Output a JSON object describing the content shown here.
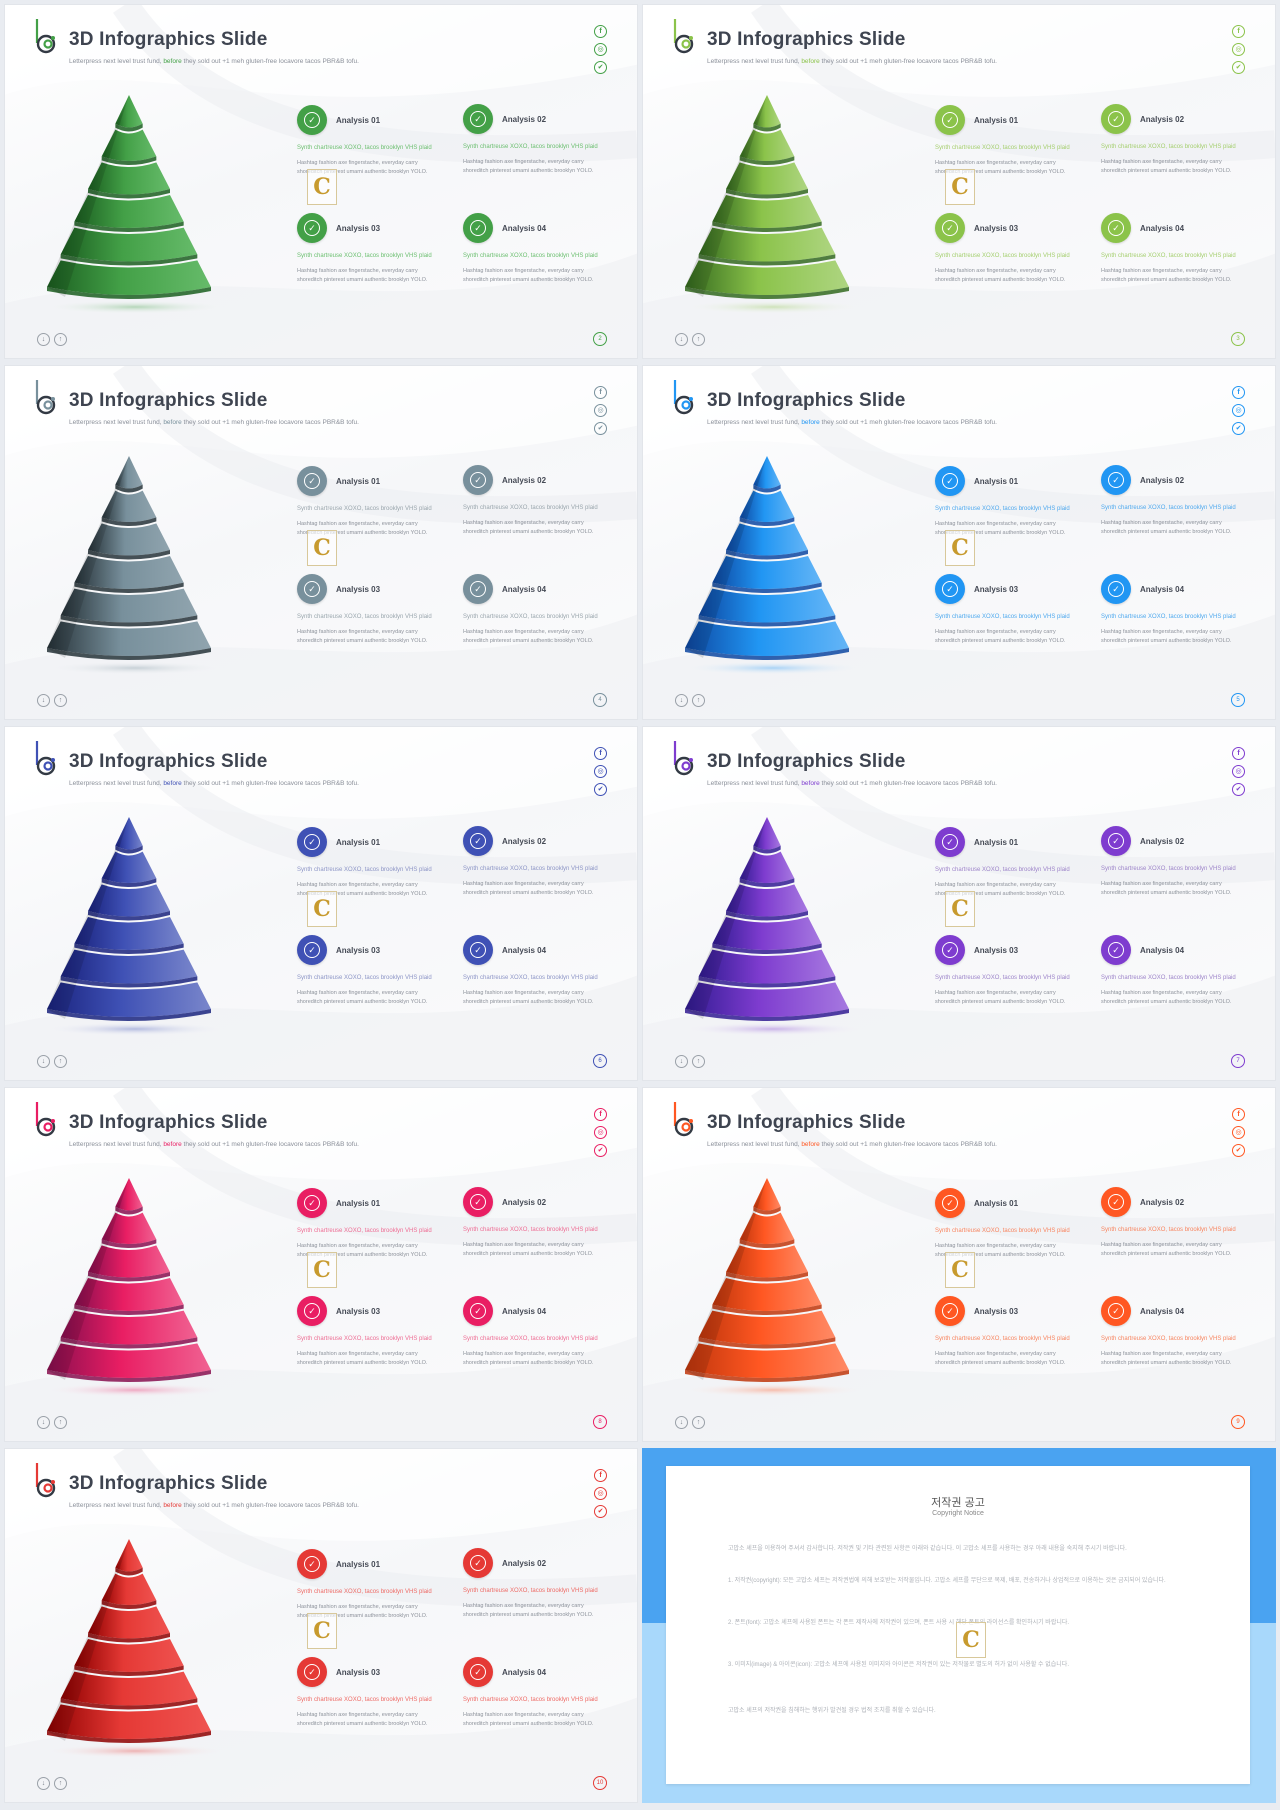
{
  "slide_common": {
    "title": "3D Infographics Slide",
    "subtitle_before": "Letterpress next level trust fund, ",
    "subtitle_highlight": "before",
    "subtitle_after": " they sold out +1 meh gluten-free locavore tacos PBR&B tofu.",
    "items": [
      {
        "label": "Analysis 01",
        "colored_text": "Synth chartreuse XOXO, tacos brooklyn VHS plaid",
        "gray_text": "Hashtag fashion axe fingerstache, everyday carry shoreditch pinterest umami authentic brooklyn YOLO."
      },
      {
        "label": "Analysis 02",
        "colored_text": "Synth chartreuse XOXO, tacos brooklyn VHS plaid",
        "gray_text": "Hashtag fashion axe fingerstache, everyday carry shoreditch pinterest umami authentic brooklyn YOLO."
      },
      {
        "label": "Analysis 03",
        "colored_text": "Synth chartreuse XOXO, tacos brooklyn VHS plaid",
        "gray_text": "Hashtag fashion axe fingerstache, everyday carry shoreditch pinterest umami authentic brooklyn YOLO."
      },
      {
        "label": "Analysis 04",
        "colored_text": "Synth chartreuse XOXO, tacos brooklyn VHS plaid",
        "gray_text": "Hashtag fashion axe fingerstache, everyday carry shoreditch pinterest umami authentic brooklyn YOLO."
      }
    ],
    "social_icons": [
      "facebook-icon",
      "instagram-icon",
      "twitter-icon"
    ],
    "nav_icons": [
      "arrow-down-icon",
      "arrow-up-icon"
    ],
    "watermark": "C"
  },
  "slides": [
    {
      "page": "2",
      "accent": "#43a047",
      "accent_dark": "#1b5e20",
      "accent_light": "#66bb6a",
      "colored_text_color": "#6cbf70"
    },
    {
      "page": "3",
      "accent": "#8bc34a",
      "accent_dark": "#33691e",
      "accent_light": "#aed581",
      "colored_text_color": "#a5cf6f"
    },
    {
      "page": "4",
      "accent": "#78909c",
      "accent_dark": "#263238",
      "accent_light": "#90a4ae",
      "colored_text_color": "#9aa6ad"
    },
    {
      "page": "5",
      "accent": "#2196f3",
      "accent_dark": "#0d47a1",
      "accent_light": "#64b5f6",
      "colored_text_color": "#4fa9ee"
    },
    {
      "page": "6",
      "accent": "#3f51b5",
      "accent_dark": "#1a237e",
      "accent_light": "#7986cb",
      "colored_text_color": "#8d95c6"
    },
    {
      "page": "7",
      "accent": "#7e3ccf",
      "accent_dark": "#311b92",
      "accent_light": "#a678e0",
      "colored_text_color": "#9d84c9"
    },
    {
      "page": "8",
      "accent": "#e91e63",
      "accent_dark": "#880e4f",
      "accent_light": "#f06292",
      "colored_text_color": "#ee6d94"
    },
    {
      "page": "9",
      "accent": "#ff5722",
      "accent_dark": "#bf360c",
      "accent_light": "#ff8a65",
      "colored_text_color": "#f88560"
    },
    {
      "page": "10",
      "accent": "#e53935",
      "accent_dark": "#8e0000",
      "accent_light": "#ef5350",
      "colored_text_color": "#ee6b66"
    }
  ],
  "notice": {
    "title": "저작권 공고",
    "subtitle": "Copyright Notice",
    "paragraphs": [
      "고맙소 셰프을 이용하여 주셔서 감사합니다. 저작권 및 기타 관련된 사항은 아래와 같습니다. 이 고맙소 셰프를 사용하는 경우 아래 내용을 숙지해 주시기 바랍니다.",
      "1. 저작권(copyright): 모든 고맙소 셰프는 저작권법에 의해 보호받는 저작물입니다. 고맙소 셰프를 무단으로 복제, 배포, 전송하거나 상업적으로 이용하는 것은 금지되어 있습니다.",
      "2. 폰트(font): 고맙소 셰프에 사용된 폰트는 각 폰트 제작사에 저작권이 있으며, 폰트 사용 시 해당 폰트의 라이선스를 확인하시기 바랍니다.",
      "3. 이미지(image) & 아이콘(icon): 고맙소 셰프에 사용된 이미지와 아이콘은 저작권이 있는 저작물로 별도의 허가 없이 사용할 수 없습니다.",
      "고맙소 셰프의 저작권을 침해하는 행위가 발견될 경우 법적 조치를 취할 수 있습니다."
    ],
    "watermark": "C"
  }
}
